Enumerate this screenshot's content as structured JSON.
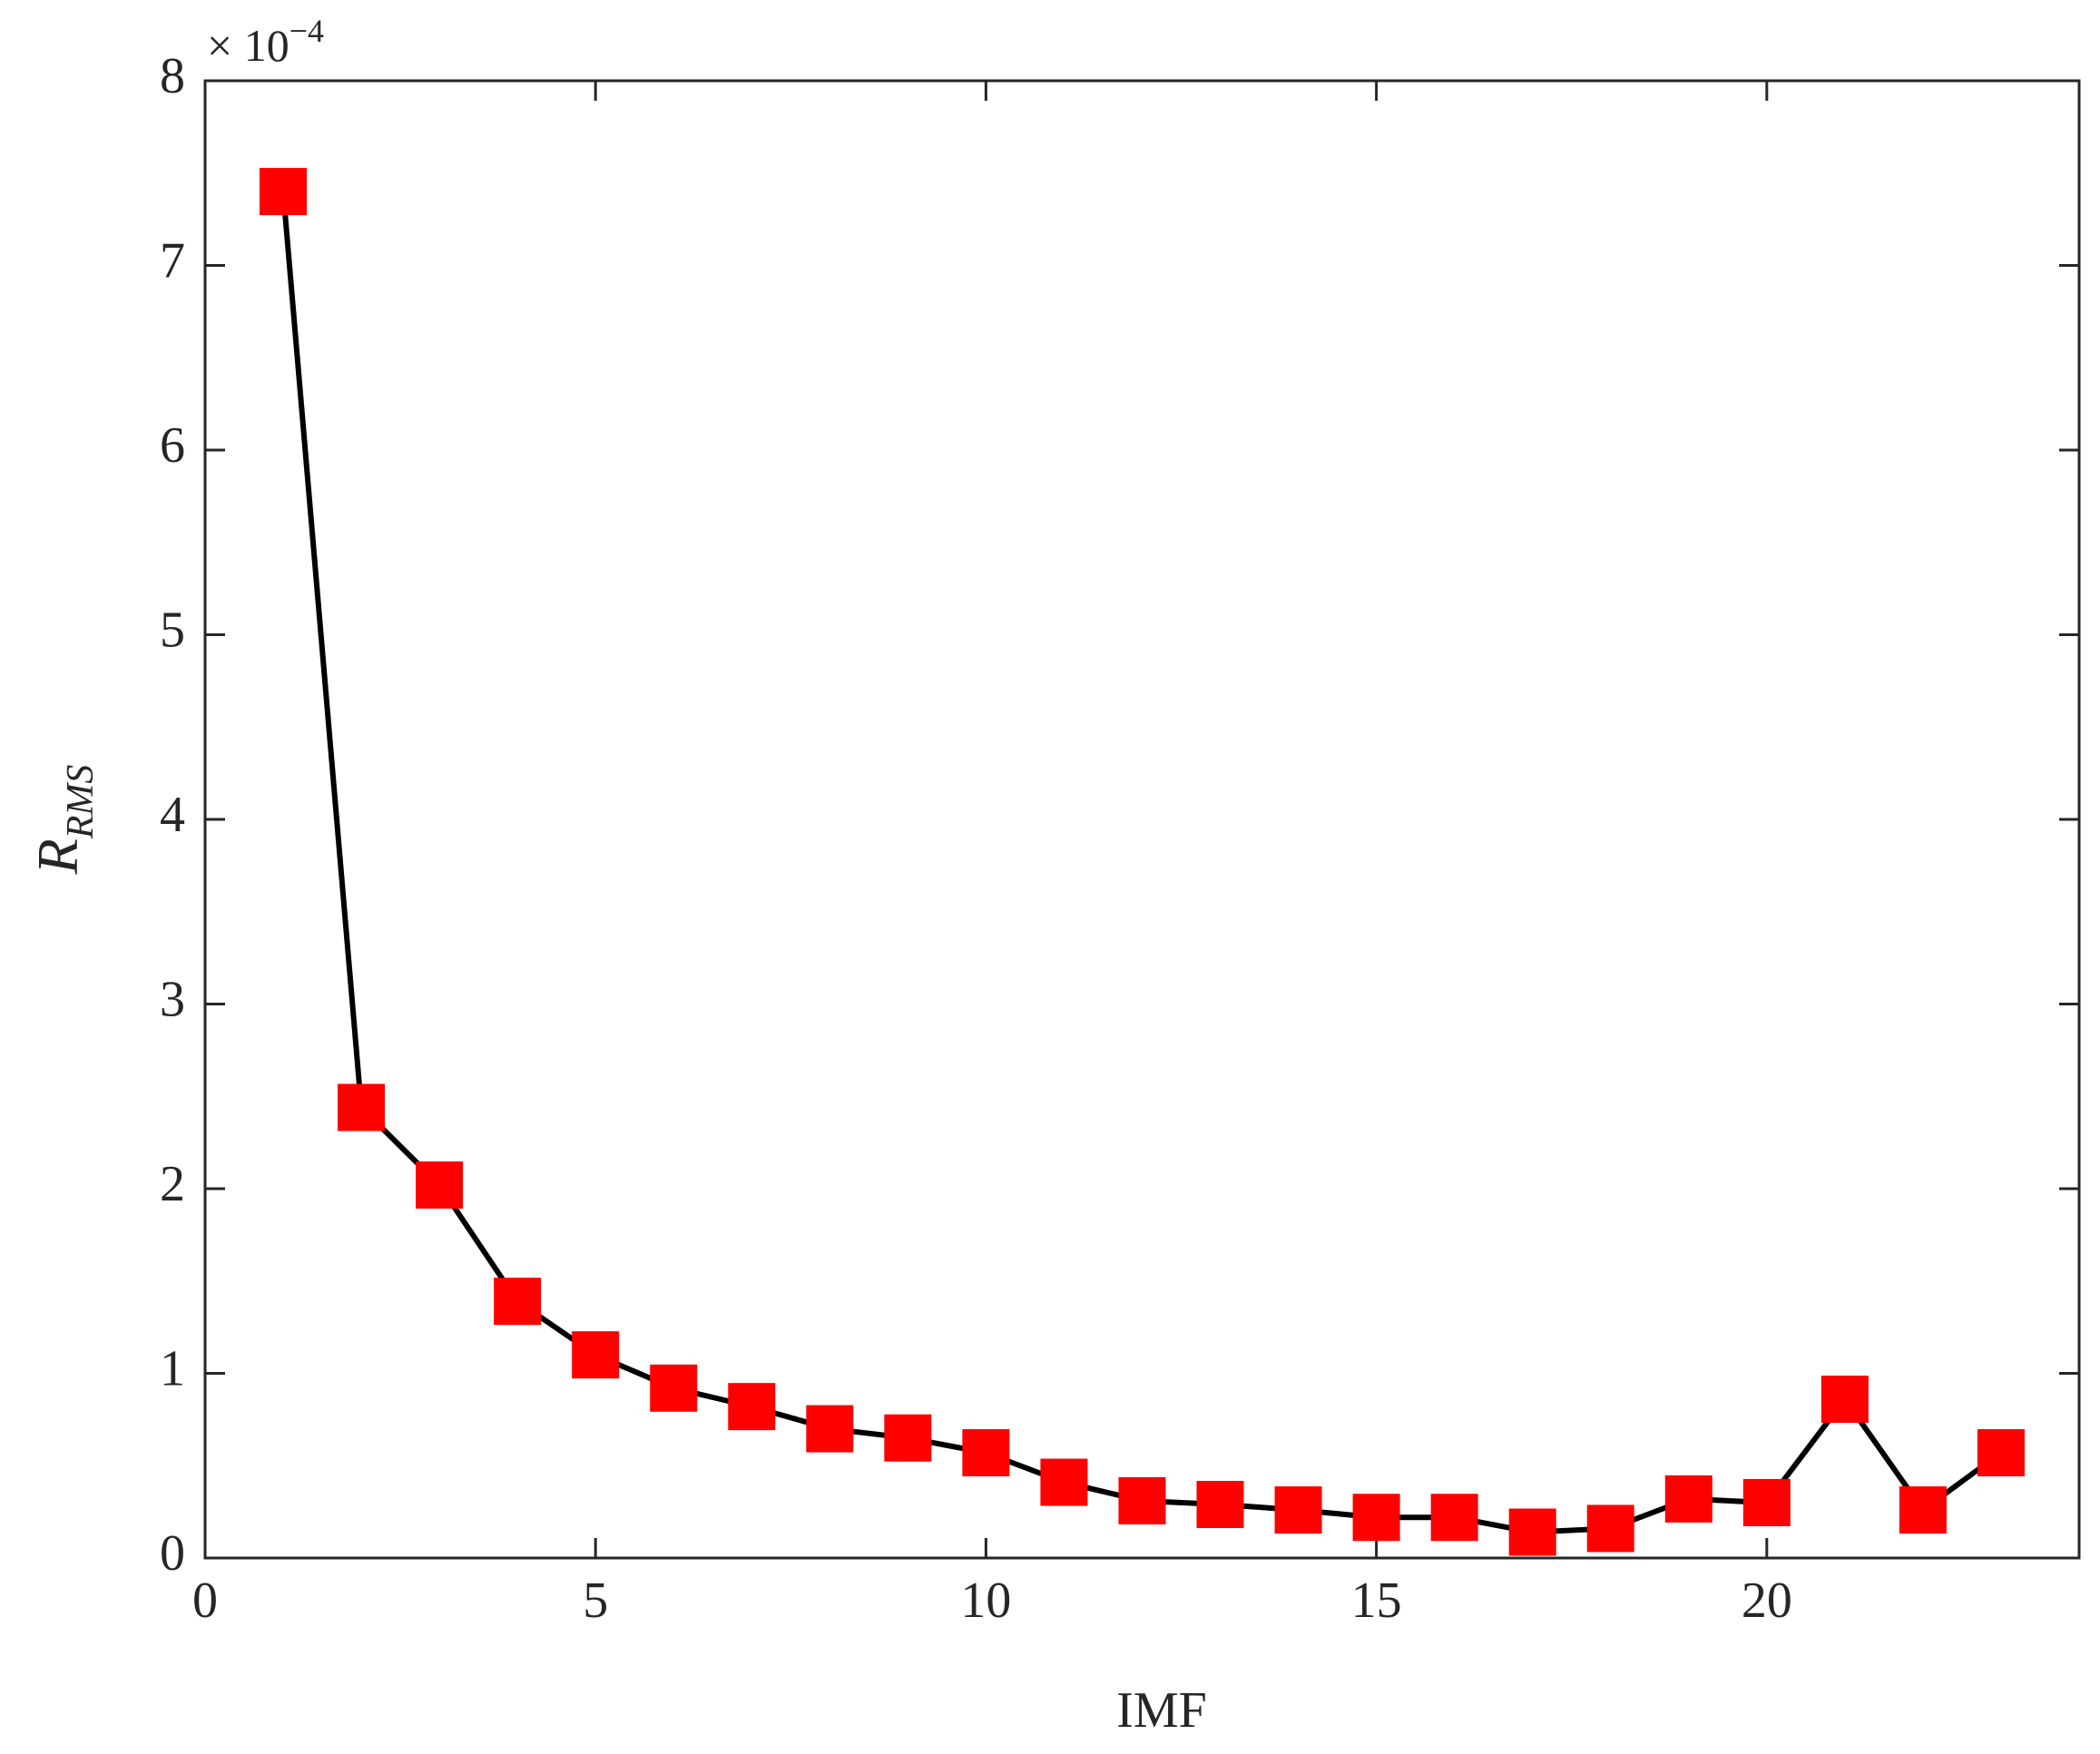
{
  "chart_data": {
    "type": "line",
    "xlabel": "IMF",
    "ylabel": "R",
    "ylabel_sub": "RMS",
    "y_multiplier_base": "× 10",
    "y_multiplier_exponent": "−4",
    "x": [
      1,
      2,
      3,
      4,
      5,
      6,
      7,
      8,
      9,
      10,
      11,
      12,
      13,
      14,
      15,
      16,
      17,
      18,
      19,
      20,
      21,
      22,
      23
    ],
    "values": [
      7.4,
      2.44,
      2.02,
      1.39,
      1.1,
      0.92,
      0.82,
      0.7,
      0.65,
      0.57,
      0.41,
      0.31,
      0.29,
      0.26,
      0.22,
      0.22,
      0.14,
      0.16,
      0.32,
      0.3,
      0.86,
      0.26,
      0.57
    ],
    "line_color": "#000000",
    "marker_color": "#ff0000",
    "marker": "square",
    "xlim": [
      0,
      24
    ],
    "xticks": [
      0,
      5,
      10,
      15,
      20
    ],
    "ylim": [
      0,
      8
    ],
    "yticks": [
      0,
      1,
      2,
      3,
      4,
      5,
      6,
      7,
      8
    ],
    "grid": false
  }
}
